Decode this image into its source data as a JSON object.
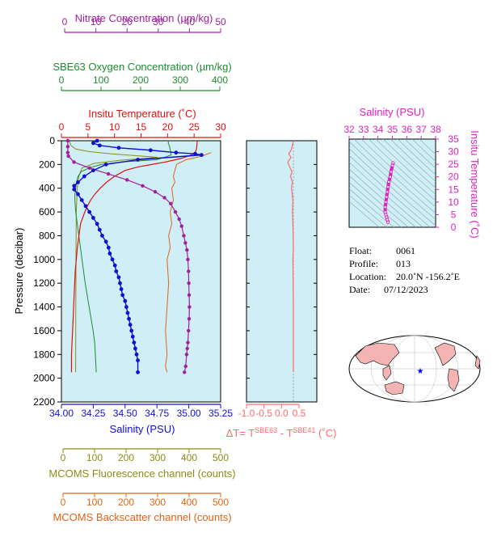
{
  "colors": {
    "panel_bg": "#cfeef6",
    "nitrate": "#a020a0",
    "oxygen": "#1e8c32",
    "temperature": "#e01010",
    "salinity": "#1010d0",
    "delta_t": "#ff6a6a",
    "ts": "#e020c0",
    "fluorescence": "#8c8c14",
    "backscatter": "#e06414",
    "land": "#f4b4b4",
    "marker": "#0000ff"
  },
  "axes": {
    "nitrate": {
      "title": "Nitrate Concentration (µm/kg)",
      "ticks": [
        "0",
        "10",
        "20",
        "30",
        "40",
        "50"
      ]
    },
    "oxygen": {
      "title": "SBE63 Oxygen Concentration (µm/kg)",
      "ticks": [
        "0",
        "100",
        "200",
        "300",
        "400"
      ]
    },
    "temperature": {
      "title": "Insitu Temperature (˚C)",
      "ticks": [
        "0",
        "5",
        "10",
        "15",
        "20",
        "25",
        "30"
      ]
    },
    "pressure": {
      "title": "Pressure (decibar)",
      "ticks": [
        "0",
        "200",
        "400",
        "600",
        "800",
        "1000",
        "1200",
        "1400",
        "1600",
        "1800",
        "2000",
        "2200"
      ]
    },
    "salinity": {
      "title": "Salinity (PSU)",
      "ticks": [
        "34.00",
        "34.25",
        "34.50",
        "34.75",
        "35.00",
        "35.25"
      ]
    },
    "delta_t": {
      "title_main": "ΔT= T",
      "sup1": "SBE63",
      "mid": " - T",
      "sup2": "SBE41",
      "tail": " (˚C)",
      "ticks": [
        "-1.0",
        "-0.5",
        "0.0",
        "0.5"
      ]
    },
    "fluorescence": {
      "title": "MCOMS Fluorescence channel (counts)",
      "ticks": [
        "0",
        "100",
        "200",
        "300",
        "400",
        "500"
      ]
    },
    "backscatter": {
      "title": "MCOMS Backscatter channel (counts)",
      "ticks": [
        "0",
        "100",
        "200",
        "300",
        "400",
        "500"
      ]
    },
    "ts_salinity": {
      "title": "Salinity (PSU)",
      "ticks": [
        "32",
        "33",
        "34",
        "35",
        "36",
        "37",
        "38"
      ]
    },
    "ts_temperature": {
      "title": "Insitu Temperature (˚C)",
      "ticks": [
        "0",
        "5",
        "10",
        "15",
        "20",
        "25",
        "30",
        "35"
      ]
    }
  },
  "info": {
    "float_label": "Float:",
    "float_value": "0061",
    "profile_label": "Profile:",
    "profile_value": "013",
    "location_label": "Location:",
    "location_value": "20.0˚N  -156.2˚E",
    "date_label": "Date:",
    "date_value": "07/12/2023"
  },
  "chart_data": [
    {
      "type": "line",
      "name": "Salinity profile",
      "xlim": [
        34.0,
        35.25
      ],
      "ylim": [
        2200,
        0
      ],
      "x": [
        34.28,
        34.25,
        34.3,
        34.45,
        34.7,
        34.9,
        35.05,
        35.1,
        34.6,
        34.35,
        34.25,
        34.18,
        34.13,
        34.1,
        34.1,
        34.13,
        34.16,
        34.19,
        34.22,
        34.25,
        34.28,
        34.3,
        34.32,
        34.35,
        34.37,
        34.38,
        34.4,
        34.42,
        34.43,
        34.45,
        34.46,
        34.47,
        34.48,
        34.5,
        34.51,
        34.52,
        34.53,
        34.54,
        34.55,
        34.56,
        34.57,
        34.58,
        34.59,
        34.6,
        34.6
      ],
      "y": [
        0,
        20,
        40,
        60,
        80,
        100,
        110,
        120,
        160,
        200,
        250,
        300,
        350,
        380,
        410,
        450,
        500,
        550,
        600,
        650,
        700,
        750,
        800,
        850,
        900,
        950,
        1000,
        1050,
        1100,
        1150,
        1200,
        1250,
        1300,
        1350,
        1400,
        1450,
        1500,
        1550,
        1600,
        1650,
        1700,
        1750,
        1800,
        1850,
        1950
      ]
    },
    {
      "type": "line",
      "name": "Temperature profile",
      "xlim": [
        0,
        30
      ],
      "ylim": [
        2200,
        0
      ],
      "x": [
        25.6,
        25.5,
        25.4,
        25.2,
        24.5,
        22.5,
        19.5,
        17,
        14.5,
        12,
        10,
        8.5,
        7.3,
        6.3,
        5.5,
        4.9,
        4.4,
        4.0,
        3.6,
        3.3,
        3.0,
        2.8,
        2.6,
        2.5,
        2.4,
        2.3,
        2.2,
        2.1,
        2.0,
        1.9,
        1.9
      ],
      "y": [
        0,
        50,
        80,
        100,
        120,
        150,
        180,
        200,
        220,
        250,
        300,
        350,
        400,
        450,
        500,
        550,
        600,
        650,
        700,
        800,
        900,
        1000,
        1100,
        1200,
        1300,
        1400,
        1500,
        1600,
        1700,
        1800,
        1950
      ]
    },
    {
      "type": "line",
      "name": "Oxygen profile",
      "xlim": [
        0,
        400
      ],
      "ylim": [
        2200,
        0
      ],
      "x": [
        270,
        270,
        272,
        274,
        275,
        276,
        277,
        260,
        240,
        150,
        100,
        70,
        50,
        42,
        38,
        36,
        34,
        34,
        36,
        40,
        44,
        48,
        52,
        56,
        60,
        65,
        70,
        75,
        80,
        84,
        88
      ],
      "y": [
        0,
        20,
        40,
        60,
        80,
        100,
        120,
        140,
        160,
        180,
        200,
        230,
        260,
        300,
        350,
        400,
        450,
        500,
        600,
        700,
        800,
        900,
        1000,
        1100,
        1200,
        1300,
        1400,
        1500,
        1600,
        1700,
        1950
      ]
    },
    {
      "type": "line",
      "name": "Nitrate profile",
      "xlim": [
        0,
        50
      ],
      "ylim": [
        2200,
        0
      ],
      "x": [
        1,
        1,
        1,
        1.2,
        3,
        8,
        14,
        20,
        25,
        29,
        32,
        34,
        35.5,
        36.7,
        37.5,
        38.2,
        38.7,
        39.2,
        39.5,
        39.7,
        39.8,
        39.9,
        40.0,
        39.9,
        39.7,
        39.5,
        39.3,
        39.1,
        38.8,
        38.4
      ],
      "y": [
        0,
        50,
        100,
        130,
        180,
        230,
        280,
        330,
        380,
        430,
        480,
        530,
        600,
        660,
        720,
        800,
        860,
        920,
        1000,
        1100,
        1200,
        1300,
        1400,
        1500,
        1600,
        1700,
        1750,
        1800,
        1900,
        1950
      ]
    },
    {
      "type": "line",
      "name": "MCOMS Fluorescence",
      "xlim": [
        0,
        500
      ],
      "ylim": [
        2200,
        0
      ],
      "x": [
        20,
        25,
        40,
        80,
        150,
        300,
        180,
        100,
        60,
        50,
        45,
        42,
        41,
        40
      ],
      "y": [
        0,
        40,
        70,
        90,
        110,
        140,
        165,
        190,
        230,
        300,
        400,
        600,
        1000,
        1950
      ]
    },
    {
      "type": "line",
      "name": "MCOMS Backscatter",
      "xlim": [
        0,
        500
      ],
      "ylim": [
        2200,
        0
      ],
      "x": [
        470,
        440,
        390,
        360,
        355,
        350,
        355,
        345,
        350,
        340,
        345,
        335,
        340,
        330,
        335,
        330,
        325,
        330,
        325,
        330
      ],
      "y": [
        100,
        130,
        160,
        200,
        250,
        300,
        350,
        400,
        500,
        600,
        700,
        800,
        900,
        1000,
        1200,
        1400,
        1600,
        1800,
        1900,
        1950
      ]
    },
    {
      "type": "line",
      "name": "Delta T",
      "xlim": [
        -1.0,
        0.5
      ],
      "ylim": [
        2200,
        0
      ],
      "x": [
        0,
        -0.02,
        -0.05,
        -0.1,
        -0.05,
        -0.12,
        -0.08,
        -0.03,
        -0.06,
        -0.02,
        -0.04,
        -0.01,
        -0.02,
        -0.01,
        0,
        -0.01,
        0,
        0
      ],
      "y": [
        0,
        40,
        80,
        110,
        140,
        180,
        220,
        260,
        300,
        350,
        400,
        500,
        600,
        700,
        900,
        1000,
        1400,
        1950
      ]
    },
    {
      "type": "scatter",
      "name": "T-S diagram",
      "xlim": [
        32,
        38
      ],
      "ylim": [
        0,
        35
      ],
      "x": [
        35.05,
        35.0,
        34.9,
        34.85,
        34.75,
        34.7,
        34.65,
        34.6,
        34.55,
        34.5,
        34.5,
        34.55,
        34.6,
        34.65,
        34.7
      ],
      "y": [
        25.6,
        24.5,
        22,
        20,
        18,
        16,
        14,
        12,
        10,
        8,
        6,
        5,
        4,
        3,
        2
      ]
    }
  ]
}
